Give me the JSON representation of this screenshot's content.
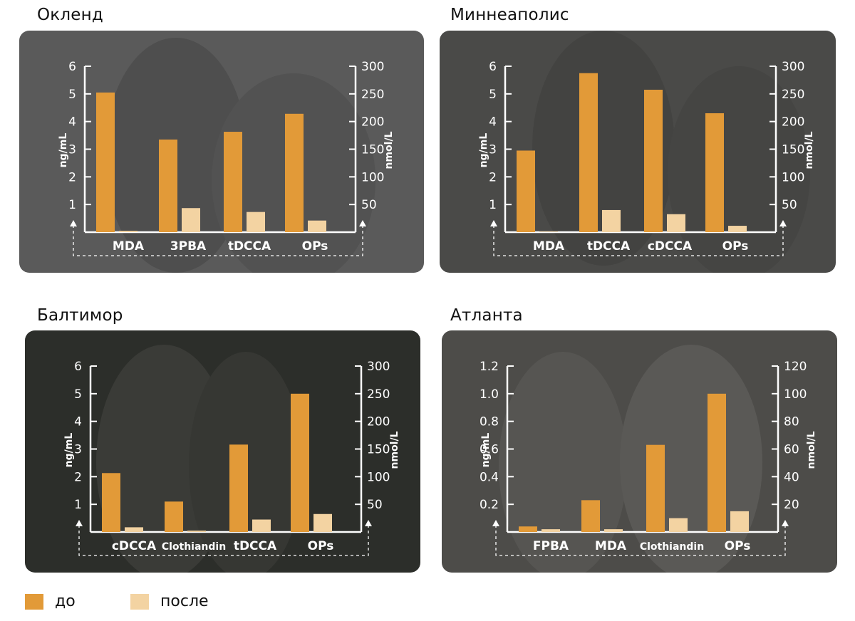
{
  "colors": {
    "before": "#e29a38",
    "after": "#f3d3a2",
    "axis": "#ffffff"
  },
  "legend": {
    "before_label": "до",
    "after_label": "после"
  },
  "chart_data": [
    {
      "type": "bar",
      "title": "Окленд",
      "categories": [
        "MDA",
        "3PBA",
        "tDCCA",
        "OPs"
      ],
      "series": [
        {
          "name": "до",
          "values": [
            5.05,
            3.35,
            3.63,
            4.28
          ]
        },
        {
          "name": "после",
          "values": [
            0.05,
            0.87,
            0.73,
            0.42
          ]
        }
      ],
      "ylabel": "ng/mL",
      "y2label": "nmol/L",
      "ylim": [
        0,
        6
      ],
      "y2lim": [
        0,
        300
      ],
      "yticks": [
        "1",
        "2",
        "3",
        "4",
        "5",
        "6"
      ],
      "y2ticks": [
        "50",
        "100",
        "150",
        "200",
        "250",
        "300"
      ]
    },
    {
      "type": "bar",
      "title": "Миннеаполис",
      "categories": [
        "MDA",
        "tDCCA",
        "cDCCA",
        "OPs"
      ],
      "series": [
        {
          "name": "до",
          "values": [
            2.95,
            5.75,
            5.15,
            4.3
          ]
        },
        {
          "name": "после",
          "values": [
            0.02,
            0.8,
            0.65,
            0.23
          ]
        }
      ],
      "ylabel": "ng/mL",
      "y2label": "nmol/L",
      "ylim": [
        0,
        6
      ],
      "y2lim": [
        0,
        300
      ],
      "yticks": [
        "1",
        "2",
        "3",
        "4",
        "5",
        "6"
      ],
      "y2ticks": [
        "50",
        "100",
        "150",
        "200",
        "250",
        "300"
      ]
    },
    {
      "type": "bar",
      "title": "Балтимор",
      "categories": [
        "cDCCA",
        "Clothiandin",
        "tDCCA",
        "OPs"
      ],
      "series": [
        {
          "name": "до",
          "values": [
            2.13,
            1.1,
            3.16,
            5.0
          ]
        },
        {
          "name": "после",
          "values": [
            0.17,
            0.05,
            0.45,
            0.65
          ]
        }
      ],
      "ylabel": "ng/mL",
      "y2label": "nmol/L",
      "ylim": [
        0,
        6
      ],
      "y2lim": [
        0,
        300
      ],
      "yticks": [
        "1",
        "2",
        "3",
        "4",
        "5",
        "6"
      ],
      "y2ticks": [
        "50",
        "100",
        "150",
        "200",
        "250",
        "300"
      ]
    },
    {
      "type": "bar",
      "title": "Атланта",
      "categories": [
        "FPBA",
        "MDA",
        "Clothiandin",
        "OPs"
      ],
      "series": [
        {
          "name": "до",
          "values": [
            0.04,
            0.23,
            0.63,
            1.0
          ]
        },
        {
          "name": "после",
          "values": [
            0.02,
            0.02,
            0.1,
            0.15
          ]
        }
      ],
      "ylabel": "ng/mL",
      "y2label": "nmol/L",
      "ylim": [
        0,
        1.2
      ],
      "y2lim": [
        0,
        120
      ],
      "yticks": [
        "0.2",
        "0.4",
        "0.6",
        "0.8",
        "1.0",
        "1.2"
      ],
      "y2ticks": [
        "20",
        "40",
        "60",
        "80",
        "100",
        "120"
      ]
    }
  ]
}
